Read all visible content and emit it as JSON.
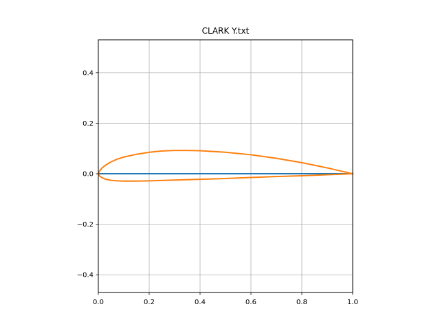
{
  "chart_data": {
    "type": "line",
    "title": "CLARK Y.txt",
    "xlabel": "",
    "ylabel": "",
    "xlim": [
      0.0,
      1.0
    ],
    "ylim": [
      -0.47,
      0.53
    ],
    "grid": true,
    "x_ticks": [
      0.0,
      0.2,
      0.4,
      0.6,
      0.8,
      1.0
    ],
    "x_tick_labels": [
      "0.0",
      "0.2",
      "0.4",
      "0.6",
      "0.8",
      "1.0"
    ],
    "y_ticks": [
      -0.4,
      -0.2,
      0.0,
      0.2,
      0.4
    ],
    "y_tick_labels": [
      "−0.4",
      "−0.2",
      "0.0",
      "0.2",
      "0.4"
    ],
    "series": [
      {
        "color": "#1f77b4",
        "x": [
          0.0,
          1.0
        ],
        "y": [
          0.0,
          0.0
        ]
      },
      {
        "color": "#ff7f0e",
        "x": [
          1.0,
          0.9,
          0.8,
          0.7,
          0.6,
          0.5,
          0.4,
          0.35,
          0.3,
          0.25,
          0.2,
          0.15,
          0.1,
          0.075,
          0.05,
          0.03,
          0.015,
          0.005,
          0.0,
          0.005,
          0.015,
          0.03,
          0.05,
          0.075,
          0.1,
          0.15,
          0.2,
          0.3,
          0.4,
          0.5,
          0.6,
          0.7,
          0.8,
          0.9,
          1.0
        ],
        "y": [
          0.0,
          0.023,
          0.044,
          0.061,
          0.075,
          0.085,
          0.091,
          0.092,
          0.092,
          0.09,
          0.085,
          0.077,
          0.066,
          0.058,
          0.047,
          0.035,
          0.023,
          0.011,
          0.0,
          -0.009,
          -0.016,
          -0.022,
          -0.026,
          -0.028,
          -0.029,
          -0.029,
          -0.028,
          -0.025,
          -0.022,
          -0.019,
          -0.015,
          -0.011,
          -0.008,
          -0.004,
          0.0
        ]
      }
    ]
  }
}
